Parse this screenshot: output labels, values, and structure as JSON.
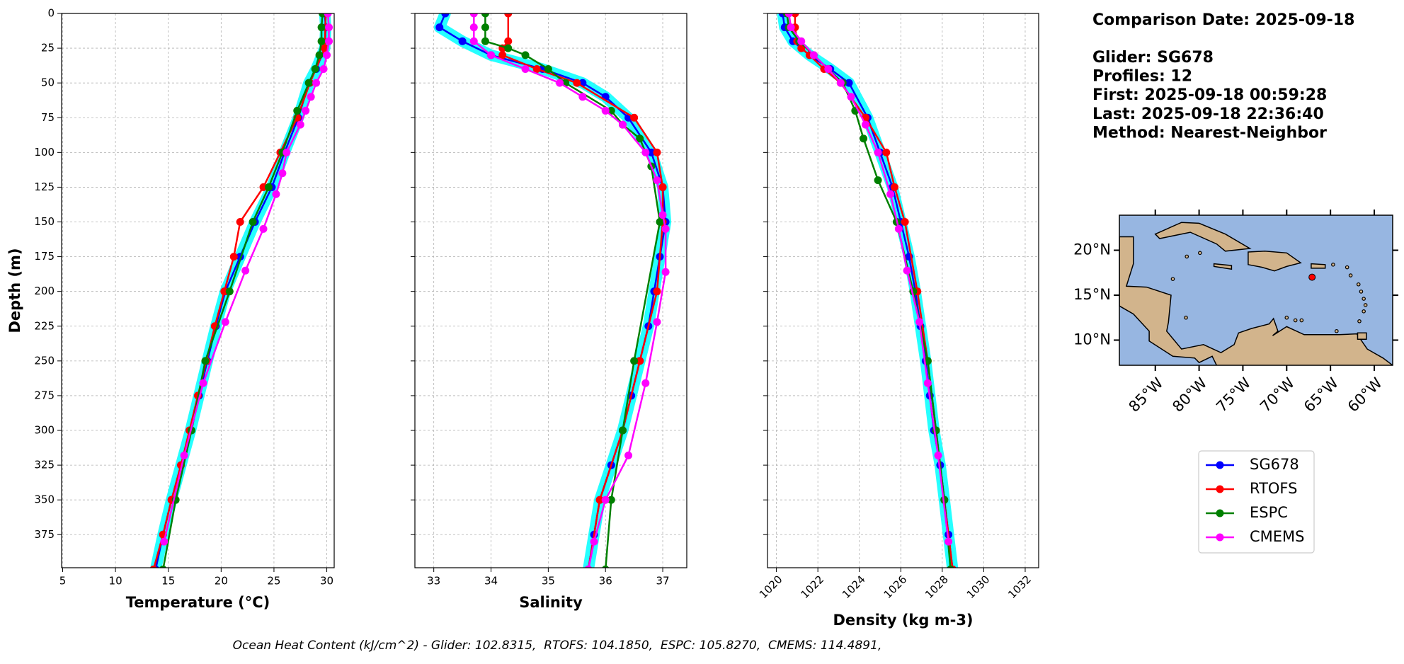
{
  "chart_data": [
    {
      "type": "line",
      "xlabel": "Temperature (°C)",
      "ylabel": "Depth (m)",
      "grid": true,
      "show_ytick_labels": true,
      "xlim": [
        4.9,
        30.7
      ],
      "xticks": [
        5,
        10,
        15,
        20,
        25,
        30
      ],
      "ylim": [
        398.8,
        0
      ],
      "yticks": [
        0,
        25,
        50,
        75,
        100,
        125,
        150,
        175,
        200,
        225,
        250,
        275,
        300,
        325,
        350,
        375
      ],
      "series": [
        {
          "name": "SG678",
          "color": "#0000ff",
          "band_color": "#00ffff",
          "x": [
            29.8,
            29.9,
            29.8,
            29.0,
            28.3,
            27.3,
            26.0,
            24.8,
            23.2,
            21.8,
            20.4,
            19.5,
            18.7,
            17.9,
            17.1,
            16.2,
            15.3,
            14.5,
            13.8
          ],
          "y": [
            0,
            10,
            25,
            40,
            50,
            75,
            100,
            125,
            150,
            175,
            200,
            225,
            250,
            275,
            300,
            325,
            350,
            375,
            400
          ]
        },
        {
          "name": "RTOFS",
          "color": "#ff0000",
          "x": [
            29.9,
            29.8,
            28.4,
            27.2,
            25.6,
            24.0,
            21.8,
            21.2,
            20.3,
            19.4,
            18.6,
            17.8,
            17.0,
            16.2,
            15.3,
            14.5,
            13.6
          ],
          "y": [
            0,
            25,
            50,
            75,
            100,
            125,
            150,
            175,
            200,
            225,
            250,
            275,
            300,
            325,
            350,
            375,
            400
          ]
        },
        {
          "name": "ESPC",
          "color": "#008000",
          "x": [
            29.6,
            29.5,
            29.5,
            29.3,
            28.9,
            28.3,
            27.2,
            25.8,
            24.5,
            23.0,
            20.8,
            18.5,
            17.2,
            15.7,
            14.5
          ],
          "y": [
            0,
            10,
            20,
            30,
            40,
            50,
            70,
            100,
            125,
            150,
            200,
            250,
            300,
            350,
            400
          ]
        },
        {
          "name": "CMEMS",
          "color": "#ff00ff",
          "x": [
            30.1,
            30.2,
            30.2,
            30.0,
            29.7,
            29.0,
            28.5,
            28.0,
            27.5,
            26.2,
            25.8,
            25.2,
            24.0,
            22.3,
            20.4,
            18.3,
            16.5,
            14.6
          ],
          "y": [
            0,
            10,
            20,
            30,
            40,
            50,
            60,
            70,
            80,
            100,
            115,
            130,
            155,
            185,
            222,
            266,
            318,
            380
          ]
        }
      ]
    },
    {
      "type": "line",
      "xlabel": "Salinity",
      "grid": true,
      "show_ytick_labels": false,
      "xlim": [
        32.67,
        37.42
      ],
      "xticks": [
        33,
        34,
        35,
        36,
        37
      ],
      "ylim": [
        398.8,
        0
      ],
      "yticks": [
        0,
        25,
        50,
        75,
        100,
        125,
        150,
        175,
        200,
        225,
        250,
        275,
        300,
        325,
        350,
        375
      ],
      "series": [
        {
          "name": "SG678",
          "color": "#0000ff",
          "band_color": "#00ffff",
          "x": [
            33.2,
            33.1,
            33.5,
            34.0,
            34.9,
            35.6,
            36.0,
            36.4,
            36.8,
            37.0,
            37.05,
            36.95,
            36.85,
            36.75,
            36.6,
            36.45,
            36.3,
            36.1,
            35.9,
            35.8,
            35.7
          ],
          "y": [
            0,
            10,
            20,
            30,
            40,
            50,
            60,
            75,
            100,
            125,
            150,
            175,
            200,
            225,
            250,
            275,
            300,
            325,
            350,
            375,
            400
          ]
        },
        {
          "name": "RTOFS",
          "color": "#ff0000",
          "x": [
            34.3,
            34.3,
            34.2,
            34.2,
            34.8,
            35.5,
            36.5,
            36.9,
            37.0,
            37.0,
            36.9,
            36.6,
            36.3,
            35.9,
            35.7
          ],
          "y": [
            0,
            20,
            25,
            30,
            40,
            50,
            75,
            100,
            125,
            150,
            200,
            250,
            300,
            350,
            400
          ]
        },
        {
          "name": "ESPC",
          "color": "#008000",
          "x": [
            33.9,
            33.9,
            33.9,
            34.3,
            34.6,
            35.0,
            35.3,
            36.1,
            36.3,
            36.6,
            36.8,
            36.95,
            36.5,
            36.3,
            36.1,
            36.0
          ],
          "y": [
            0,
            10,
            20,
            25,
            30,
            40,
            50,
            70,
            80,
            90,
            110,
            150,
            250,
            300,
            350,
            400
          ]
        },
        {
          "name": "CMEMS",
          "color": "#ff00ff",
          "x": [
            33.7,
            33.7,
            33.7,
            34.0,
            34.6,
            35.2,
            35.6,
            36.0,
            36.3,
            36.7,
            36.9,
            37.0,
            37.05,
            37.05,
            36.9,
            36.7,
            36.4,
            36.0,
            35.8,
            35.7
          ],
          "y": [
            0,
            10,
            20,
            30,
            40,
            50,
            60,
            70,
            80,
            100,
            120,
            145,
            155,
            186,
            222,
            266,
            318,
            350,
            380,
            400
          ]
        }
      ]
    },
    {
      "type": "line",
      "xlabel": "Density (kg m-3)",
      "grid": true,
      "show_ytick_labels": false,
      "xtick_rotation": 45,
      "xlim": [
        1019.57,
        1032.65
      ],
      "xticks": [
        1020,
        1022,
        1024,
        1026,
        1028,
        1030,
        1032
      ],
      "ylim": [
        398.8,
        0
      ],
      "yticks": [
        0,
        25,
        50,
        75,
        100,
        125,
        150,
        175,
        200,
        225,
        250,
        275,
        300,
        325,
        350,
        375
      ],
      "series": [
        {
          "name": "SG678",
          "color": "#0000ff",
          "band_color": "#00ffff",
          "x": [
            1020.3,
            1020.4,
            1020.8,
            1021.6,
            1022.6,
            1023.5,
            1024.4,
            1025.0,
            1025.6,
            1026.0,
            1026.4,
            1026.7,
            1026.95,
            1027.2,
            1027.4,
            1027.6,
            1027.9,
            1028.1,
            1028.3,
            1028.5
          ],
          "y": [
            0,
            10,
            20,
            30,
            40,
            50,
            75,
            100,
            125,
            150,
            175,
            200,
            225,
            250,
            275,
            300,
            325,
            350,
            375,
            400
          ]
        },
        {
          "name": "RTOFS",
          "color": "#ff0000",
          "x": [
            1020.9,
            1020.9,
            1021.0,
            1021.2,
            1021.6,
            1022.3,
            1023.1,
            1024.3,
            1025.3,
            1025.7,
            1026.2,
            1026.8,
            1027.3,
            1027.7,
            1028.1,
            1028.5
          ],
          "y": [
            0,
            10,
            20,
            25,
            30,
            40,
            50,
            75,
            100,
            125,
            150,
            200,
            250,
            300,
            350,
            400
          ]
        },
        {
          "name": "ESPC",
          "color": "#008000",
          "x": [
            1020.5,
            1020.6,
            1021.1,
            1021.8,
            1022.5,
            1023.2,
            1023.8,
            1024.2,
            1024.9,
            1025.8,
            1026.6,
            1027.3,
            1027.7,
            1028.1,
            1028.4
          ],
          "y": [
            0,
            10,
            20,
            30,
            40,
            50,
            70,
            90,
            120,
            150,
            200,
            250,
            300,
            350,
            400
          ]
        },
        {
          "name": "CMEMS",
          "color": "#ff00ff",
          "x": [
            1020.6,
            1020.7,
            1021.2,
            1021.8,
            1022.5,
            1023.1,
            1023.6,
            1024.3,
            1024.9,
            1025.5,
            1025.9,
            1026.3,
            1026.9,
            1027.3,
            1027.8,
            1028.3
          ],
          "y": [
            0,
            10,
            20,
            30,
            40,
            50,
            60,
            80,
            100,
            130,
            155,
            185,
            222,
            266,
            318,
            380
          ]
        }
      ]
    }
  ],
  "info": [
    "Comparison Date: 2025-09-18",
    "Glider: SG678",
    "Profiles: 12",
    "First: 2025-09-18 00:59:28",
    "Last: 2025-09-18 22:36:40",
    "Method: Nearest-Neighbor"
  ],
  "map": {
    "lonlim": [
      -89.1,
      -57.9
    ],
    "latlim": [
      7.2,
      23.9
    ],
    "ocean_color": "#97b6e1",
    "land_color": "#d2b48c",
    "lonticks": [
      {
        "value": -85,
        "label": "85°W"
      },
      {
        "value": -80,
        "label": "80°W"
      },
      {
        "value": -75,
        "label": "75°W"
      },
      {
        "value": -70,
        "label": "70°W"
      },
      {
        "value": -65,
        "label": "65°W"
      },
      {
        "value": -60,
        "label": "60°W"
      }
    ],
    "latticks": [
      {
        "value": 20,
        "label": "20°N"
      },
      {
        "value": 15,
        "label": "15°N"
      },
      {
        "value": 10,
        "label": "10°N"
      }
    ],
    "glider_position": {
      "lon": -67.1,
      "lat": 17.0,
      "color": "#ff0000"
    }
  },
  "footer": "Ocean Heat Content (kJ/cm^2) - Glider: 102.8315,  RTOFS: 104.1850,  ESPC: 105.8270,  CMEMS: 114.4891,"
}
